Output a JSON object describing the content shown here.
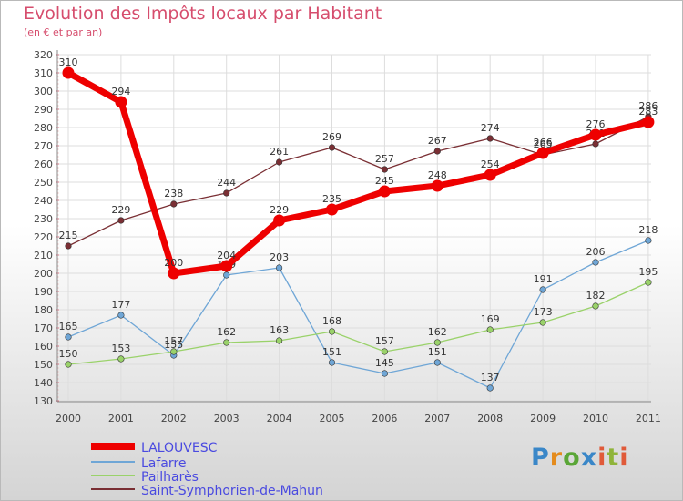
{
  "title": "Evolution des Impôts locaux par Habitant",
  "subtitle": "(en € et par an)",
  "logo": {
    "p": "P",
    "r": "r",
    "o": "o",
    "x": "x",
    "i": "i",
    "t": "t",
    "i2": "i"
  },
  "colors": {
    "axis_text": "#444444",
    "grid": "#dddddd",
    "legend_text": "#4a4ae0"
  },
  "chart_data": {
    "type": "line",
    "title": "Evolution des Impôts locaux par Habitant",
    "subtitle": "(en € et par an)",
    "xlabel": "",
    "ylabel": "",
    "ylim": [
      130,
      320
    ],
    "yticks": [
      130,
      140,
      150,
      160,
      170,
      180,
      190,
      200,
      210,
      220,
      230,
      240,
      250,
      260,
      270,
      280,
      290,
      300,
      310,
      320
    ],
    "grid": true,
    "legend_position": "bottom-left",
    "categories": [
      "2000",
      "2001",
      "2002",
      "2003",
      "2004",
      "2005",
      "2006",
      "2007",
      "2008",
      "2009",
      "2010",
      "2011"
    ],
    "series": [
      {
        "name": "LALOUVESC",
        "color": "#ee0000",
        "thick": true,
        "values": [
          310,
          294,
          200,
          204,
          229,
          235,
          245,
          248,
          254,
          266,
          276,
          283
        ]
      },
      {
        "name": "Lafarre",
        "color": "#6fa6d6",
        "thick": false,
        "values": [
          165,
          177,
          155,
          199,
          203,
          151,
          145,
          151,
          137,
          191,
          206,
          218
        ]
      },
      {
        "name": "Pailharès",
        "color": "#9ad26a",
        "thick": false,
        "values": [
          150,
          153,
          157,
          162,
          163,
          168,
          157,
          162,
          169,
          173,
          182,
          195
        ]
      },
      {
        "name": "Saint-Symphorien-de-Mahun",
        "color": "#7a2f34",
        "thick": false,
        "values": [
          215,
          229,
          238,
          244,
          261,
          269,
          257,
          267,
          274,
          265,
          271,
          286
        ]
      }
    ]
  }
}
